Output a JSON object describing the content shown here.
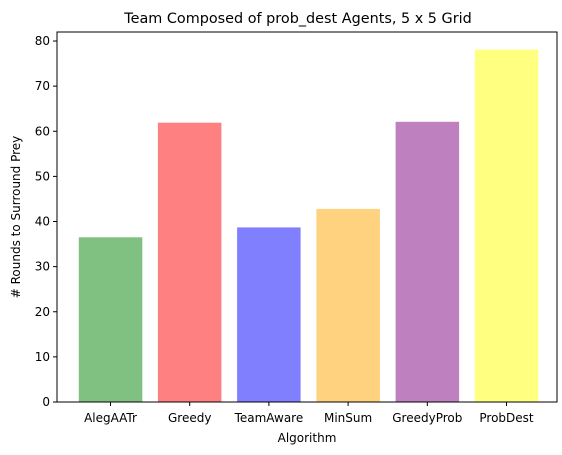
{
  "chart_data": {
    "type": "bar",
    "title": "Team Composed of prob_dest Agents, 5 x 5 Grid",
    "xlabel": "Algorithm",
    "ylabel": "# Rounds to Surround Prey",
    "categories": [
      "AlegAATr",
      "Greedy",
      "TeamAware",
      "MinSum",
      "GreedyProb",
      "ProbDest"
    ],
    "values": [
      36.5,
      61.9,
      38.7,
      42.8,
      62.1,
      78.1
    ],
    "colors": [
      "#80c080",
      "#ff8080",
      "#8080ff",
      "#ffd280",
      "#bf80bf",
      "#ffff80"
    ],
    "ylim": [
      0,
      82
    ],
    "yticks": [
      0,
      10,
      20,
      30,
      40,
      50,
      60,
      70,
      80
    ],
    "grid": false,
    "legend": "none"
  }
}
